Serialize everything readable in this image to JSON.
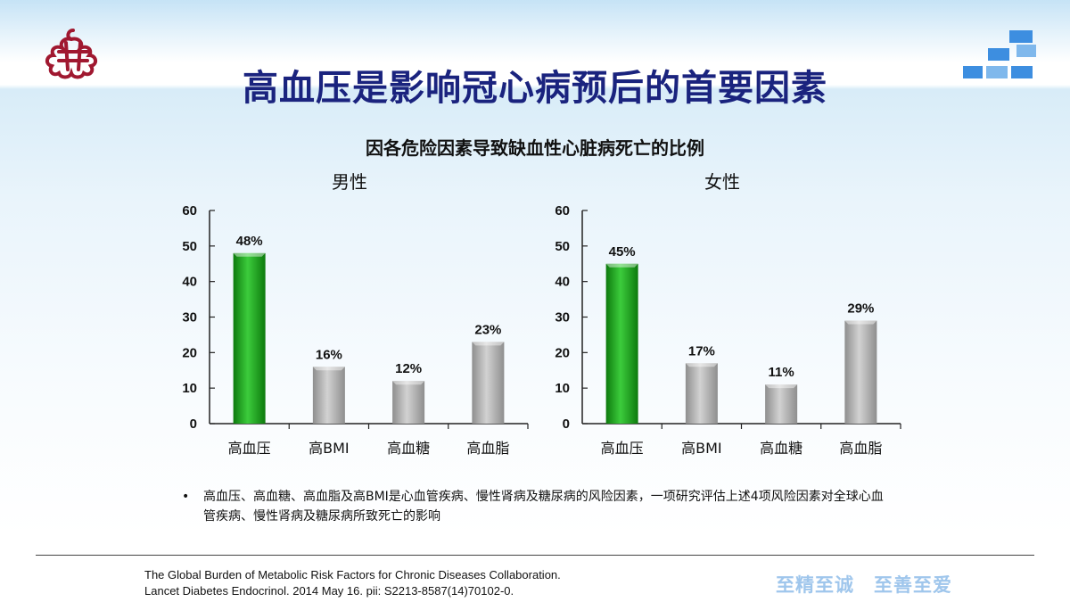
{
  "header": {
    "title": "高血压是影响冠心病预后的首要因素",
    "logo_icon": "hospital-logo-icon",
    "deco_icon": "blue-blocks-decoration-icon"
  },
  "colors": {
    "title": "#1a237e",
    "logo": "#a01830",
    "bar_highlight": "#1fa61f",
    "bar_other": "#b0b0b0",
    "slogan": "#9fc6ec"
  },
  "chart_data": [
    {
      "type": "bar",
      "title": "因各危险因素导致缺血性心脏病死亡的比例",
      "subtitle": "男性",
      "categories": [
        "高血压",
        "高BMI",
        "高血糖",
        "高血脂"
      ],
      "values": [
        48,
        16,
        12,
        23
      ],
      "data_labels": [
        "48%",
        "16%",
        "12%",
        "23%"
      ],
      "highlight_index": 0,
      "ylim": [
        0,
        60
      ],
      "yticks": [
        0,
        10,
        20,
        30,
        40,
        50,
        60
      ],
      "grid": false,
      "legend": false
    },
    {
      "type": "bar",
      "subtitle": "女性",
      "categories": [
        "高血压",
        "高BMI",
        "高血糖",
        "高血脂"
      ],
      "values": [
        45,
        17,
        11,
        29
      ],
      "data_labels": [
        "45%",
        "17%",
        "11%",
        "29%"
      ],
      "highlight_index": 0,
      "ylim": [
        0,
        60
      ],
      "yticks": [
        0,
        10,
        20,
        30,
        40,
        50,
        60
      ],
      "grid": false,
      "legend": false
    }
  ],
  "note": {
    "bullet": "•",
    "text": "高血压、高血糖、高血脂及高BMI是心血管疾病、慢性肾病及糖尿病的风险因素，一项研究评估上述4项风险因素对全球心血管疾病、慢性肾病及糖尿病所致死亡的影响"
  },
  "reference": {
    "line1": "The Global Burden of Metabolic Risk Factors for Chronic Diseases Collaboration.",
    "line2": "Lancet Diabetes Endocrinol. 2014 May 16. pii: S2213-8587(14)70102-0."
  },
  "slogan": "至精至诚　至善至爱"
}
